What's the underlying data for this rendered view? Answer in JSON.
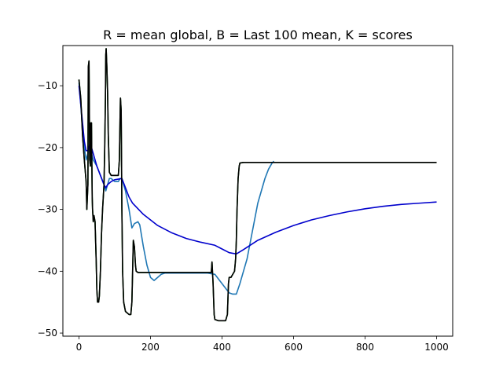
{
  "chart_data": {
    "type": "line",
    "title": "R = mean global, B = Last 100 mean, K = scores",
    "xlabel": "",
    "ylabel": "",
    "xlim": [
      -45,
      1045
    ],
    "ylim": [
      -50.5,
      -3.5
    ],
    "xticks": [
      0,
      200,
      400,
      600,
      800,
      1000
    ],
    "yticks": [
      -50,
      -40,
      -30,
      -20,
      -10
    ],
    "xtick_labels": [
      "0",
      "200",
      "400",
      "600",
      "800",
      "1000"
    ],
    "ytick_labels": [
      "−50",
      "−40",
      "−30",
      "−20",
      "−10"
    ],
    "grid": false,
    "legend": "none",
    "series": [
      {
        "color": "#006400",
        "points": [
          [
            0,
            -9
          ],
          [
            5,
            -12
          ],
          [
            10,
            -18
          ],
          [
            15,
            -22
          ],
          [
            20,
            -25.5
          ],
          [
            22,
            -30
          ],
          [
            25,
            -26
          ],
          [
            26,
            -7
          ],
          [
            28,
            -6
          ],
          [
            30,
            -22
          ],
          [
            32,
            -23
          ],
          [
            33,
            -16
          ],
          [
            35,
            -16
          ],
          [
            37,
            -28
          ],
          [
            38,
            -30
          ],
          [
            40,
            -32
          ],
          [
            42,
            -31
          ],
          [
            45,
            -32
          ],
          [
            48,
            -38
          ],
          [
            50,
            -43
          ],
          [
            52,
            -45
          ],
          [
            55,
            -45
          ],
          [
            57,
            -44
          ],
          [
            60,
            -40
          ],
          [
            63,
            -34
          ],
          [
            66,
            -30
          ],
          [
            70,
            -26
          ],
          [
            72,
            -20
          ],
          [
            74,
            -12
          ],
          [
            75,
            -5
          ],
          [
            76,
            -4
          ],
          [
            78,
            -7
          ],
          [
            80,
            -11
          ],
          [
            82,
            -18
          ],
          [
            85,
            -24
          ],
          [
            90,
            -24.5
          ],
          [
            100,
            -24.5
          ],
          [
            110,
            -24.5
          ],
          [
            113,
            -22
          ],
          [
            115,
            -15
          ],
          [
            116,
            -12
          ],
          [
            118,
            -14
          ],
          [
            120,
            -30
          ],
          [
            122,
            -40
          ],
          [
            125,
            -45
          ],
          [
            130,
            -46.5
          ],
          [
            140,
            -47
          ],
          [
            145,
            -47
          ],
          [
            148,
            -45
          ],
          [
            150,
            -40
          ],
          [
            152,
            -35
          ],
          [
            155,
            -36
          ],
          [
            158,
            -39
          ],
          [
            160,
            -40
          ],
          [
            165,
            -40.2
          ],
          [
            200,
            -40.2
          ],
          [
            250,
            -40.2
          ],
          [
            300,
            -40.2
          ],
          [
            350,
            -40.2
          ],
          [
            370,
            -40.2
          ],
          [
            372,
            -38.5
          ],
          [
            375,
            -42
          ],
          [
            378,
            -47
          ],
          [
            380,
            -47.8
          ],
          [
            390,
            -48
          ],
          [
            400,
            -48
          ],
          [
            410,
            -48
          ],
          [
            415,
            -47
          ],
          [
            418,
            -42
          ],
          [
            420,
            -41
          ],
          [
            425,
            -41
          ],
          [
            430,
            -40.5
          ],
          [
            435,
            -40
          ],
          [
            438,
            -38
          ],
          [
            440,
            -35
          ],
          [
            442,
            -30
          ],
          [
            445,
            -25
          ],
          [
            448,
            -23
          ],
          [
            450,
            -22.5
          ],
          [
            460,
            -22.4
          ],
          [
            500,
            -22.4
          ],
          [
            600,
            -22.4
          ],
          [
            700,
            -22.4
          ],
          [
            800,
            -22.4
          ],
          [
            900,
            -22.4
          ],
          [
            1000,
            -22.4
          ]
        ]
      },
      {
        "color": "#1f77b4",
        "points": [
          [
            0,
            -9.5
          ],
          [
            5,
            -13
          ],
          [
            10,
            -17
          ],
          [
            15,
            -20
          ],
          [
            20,
            -22
          ],
          [
            25,
            -21
          ],
          [
            30,
            -19.5
          ],
          [
            35,
            -21
          ],
          [
            40,
            -22
          ],
          [
            50,
            -23
          ],
          [
            60,
            -24.5
          ],
          [
            70,
            -26
          ],
          [
            75,
            -27
          ],
          [
            80,
            -26
          ],
          [
            85,
            -25
          ],
          [
            90,
            -25
          ],
          [
            100,
            -25.5
          ],
          [
            110,
            -25.5
          ],
          [
            115,
            -25
          ],
          [
            120,
            -25
          ],
          [
            130,
            -27
          ],
          [
            140,
            -30
          ],
          [
            148,
            -33
          ],
          [
            155,
            -32.3
          ],
          [
            165,
            -32
          ],
          [
            170,
            -32.5
          ],
          [
            180,
            -36
          ],
          [
            190,
            -39
          ],
          [
            200,
            -41
          ],
          [
            210,
            -41.5
          ],
          [
            220,
            -41
          ],
          [
            230,
            -40.5
          ],
          [
            240,
            -40.3
          ],
          [
            250,
            -40.3
          ],
          [
            280,
            -40.3
          ],
          [
            320,
            -40.3
          ],
          [
            360,
            -40.3
          ],
          [
            380,
            -40.5
          ],
          [
            400,
            -42
          ],
          [
            420,
            -43.5
          ],
          [
            430,
            -43.7
          ],
          [
            440,
            -43.7
          ],
          [
            450,
            -42
          ],
          [
            460,
            -40
          ],
          [
            470,
            -38
          ],
          [
            480,
            -35
          ],
          [
            490,
            -32
          ],
          [
            500,
            -29
          ],
          [
            510,
            -27
          ],
          [
            520,
            -25
          ],
          [
            530,
            -23.5
          ],
          [
            540,
            -22.5
          ],
          [
            545,
            -22.2
          ]
        ]
      },
      {
        "color": "#0000cc",
        "points": [
          [
            0,
            -10
          ],
          [
            5,
            -13
          ],
          [
            10,
            -16
          ],
          [
            15,
            -19
          ],
          [
            20,
            -20.5
          ],
          [
            25,
            -20.5
          ],
          [
            30,
            -19.5
          ],
          [
            35,
            -20
          ],
          [
            40,
            -21
          ],
          [
            50,
            -23
          ],
          [
            60,
            -24.5
          ],
          [
            70,
            -26
          ],
          [
            75,
            -26.5
          ],
          [
            80,
            -26
          ],
          [
            90,
            -25.5
          ],
          [
            100,
            -25.2
          ],
          [
            110,
            -25.1
          ],
          [
            120,
            -25
          ],
          [
            130,
            -26.5
          ],
          [
            140,
            -28
          ],
          [
            150,
            -29
          ],
          [
            180,
            -30.8
          ],
          [
            220,
            -32.6
          ],
          [
            260,
            -33.8
          ],
          [
            300,
            -34.7
          ],
          [
            340,
            -35.3
          ],
          [
            380,
            -35.8
          ],
          [
            400,
            -36.4
          ],
          [
            420,
            -37.0
          ],
          [
            440,
            -37.2
          ],
          [
            460,
            -36.5
          ],
          [
            500,
            -35.0
          ],
          [
            550,
            -33.7
          ],
          [
            600,
            -32.6
          ],
          [
            650,
            -31.7
          ],
          [
            700,
            -31.0
          ],
          [
            750,
            -30.4
          ],
          [
            800,
            -29.9
          ],
          [
            850,
            -29.5
          ],
          [
            900,
            -29.2
          ],
          [
            950,
            -29.0
          ],
          [
            1000,
            -28.8
          ]
        ]
      },
      {
        "color": "#000000",
        "points": [
          [
            0,
            -9
          ],
          [
            5,
            -12
          ],
          [
            10,
            -18
          ],
          [
            15,
            -22
          ],
          [
            20,
            -25.5
          ],
          [
            22,
            -30
          ],
          [
            25,
            -26
          ],
          [
            26,
            -7
          ],
          [
            28,
            -6
          ],
          [
            30,
            -22
          ],
          [
            32,
            -23
          ],
          [
            33,
            -16
          ],
          [
            35,
            -16
          ],
          [
            37,
            -28
          ],
          [
            38,
            -30
          ],
          [
            40,
            -32
          ],
          [
            42,
            -31
          ],
          [
            45,
            -32
          ],
          [
            48,
            -38
          ],
          [
            50,
            -43
          ],
          [
            52,
            -45
          ],
          [
            55,
            -45
          ],
          [
            57,
            -44
          ],
          [
            60,
            -40
          ],
          [
            63,
            -34
          ],
          [
            66,
            -30
          ],
          [
            70,
            -26
          ],
          [
            72,
            -20
          ],
          [
            74,
            -12
          ],
          [
            75,
            -5
          ],
          [
            76,
            -4
          ],
          [
            78,
            -7
          ],
          [
            80,
            -11
          ],
          [
            82,
            -18
          ],
          [
            85,
            -24
          ],
          [
            90,
            -24.5
          ],
          [
            100,
            -24.5
          ],
          [
            110,
            -24.5
          ],
          [
            113,
            -22
          ],
          [
            115,
            -15
          ],
          [
            116,
            -12
          ],
          [
            118,
            -14
          ],
          [
            120,
            -30
          ],
          [
            122,
            -40
          ],
          [
            125,
            -45
          ],
          [
            130,
            -46.5
          ],
          [
            140,
            -47
          ],
          [
            145,
            -47
          ],
          [
            148,
            -45
          ],
          [
            150,
            -40
          ],
          [
            152,
            -35
          ],
          [
            155,
            -36
          ],
          [
            158,
            -39
          ],
          [
            160,
            -40
          ],
          [
            165,
            -40.2
          ],
          [
            200,
            -40.2
          ],
          [
            250,
            -40.2
          ],
          [
            300,
            -40.2
          ],
          [
            350,
            -40.2
          ],
          [
            370,
            -40.2
          ],
          [
            372,
            -38.5
          ],
          [
            375,
            -42
          ],
          [
            378,
            -47
          ],
          [
            380,
            -47.8
          ],
          [
            390,
            -48
          ],
          [
            400,
            -48
          ],
          [
            410,
            -48
          ],
          [
            415,
            -47
          ],
          [
            418,
            -42
          ],
          [
            420,
            -41
          ],
          [
            425,
            -41
          ],
          [
            430,
            -40.5
          ],
          [
            435,
            -40
          ],
          [
            438,
            -38
          ],
          [
            440,
            -35
          ],
          [
            442,
            -30
          ],
          [
            445,
            -25
          ],
          [
            448,
            -23
          ],
          [
            450,
            -22.5
          ],
          [
            460,
            -22.4
          ],
          [
            500,
            -22.4
          ],
          [
            600,
            -22.4
          ],
          [
            700,
            -22.4
          ],
          [
            800,
            -22.4
          ],
          [
            900,
            -22.4
          ],
          [
            1000,
            -22.4
          ]
        ]
      }
    ]
  }
}
